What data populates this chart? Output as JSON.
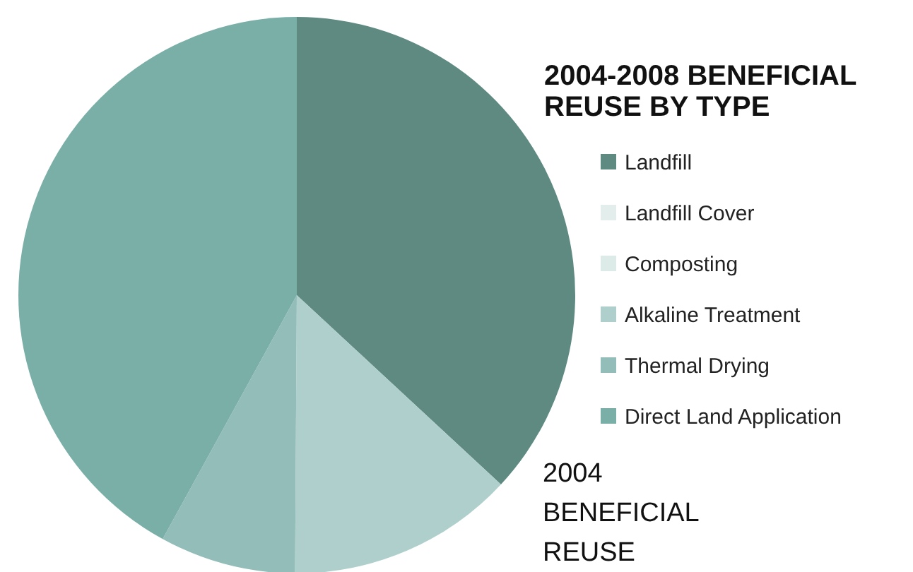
{
  "chart_data": {
    "type": "pie",
    "title": "2004-2008 BENEFICIAL REUSE BY TYPE",
    "categories": [
      "Landfill",
      "Landfill Cover",
      "Composting",
      "Alkaline Treatment",
      "Thermal Drying",
      "Direct Land Application"
    ],
    "values": [
      36.9,
      0,
      0,
      13.2,
      7.9,
      42
    ],
    "colors": [
      "#5e8a82",
      "#e3eeec",
      "#dcebe8",
      "#aecfcc",
      "#93bdb8",
      "#7aafa8"
    ],
    "legend": "right",
    "annotations": [
      "2004 BENEFICIAL REUSE"
    ]
  }
}
